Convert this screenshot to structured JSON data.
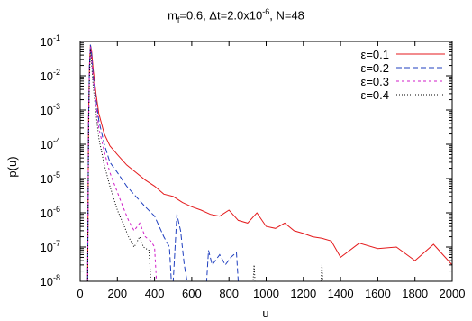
{
  "chart_data": {
    "type": "line",
    "title_parts": {
      "p1": "m",
      "p1_sub": "f",
      "p2": "=0.6, Δt=2.0x10",
      "p2_sup": "-6",
      "p3": ", N=48"
    },
    "xlabel": "u",
    "ylabel": "p(u)",
    "xlim": [
      0,
      2000
    ],
    "ylim": [
      1e-08,
      0.1
    ],
    "yscale": "log",
    "x_ticks": [
      "0",
      "200",
      "400",
      "600",
      "800",
      "1000",
      "1200",
      "1400",
      "1600",
      "1800",
      "2000"
    ],
    "y_tick_bases": [
      "10",
      "10",
      "10",
      "10",
      "10",
      "10",
      "10",
      "10"
    ],
    "y_tick_exps": [
      "-8",
      "-7",
      "-6",
      "-5",
      "-4",
      "-3",
      "-2",
      "-1"
    ],
    "legend_position": "top-right",
    "series": [
      {
        "name": "ε=0.1",
        "color": "#e41a1c",
        "dash": "solid",
        "points": [
          [
            40,
            1e-08
          ],
          [
            45,
            0.0005
          ],
          [
            50,
            0.02
          ],
          [
            55,
            0.08
          ],
          [
            62,
            0.05
          ],
          [
            70,
            0.015
          ],
          [
            85,
            0.003
          ],
          [
            100,
            0.0008
          ],
          [
            130,
            0.0002
          ],
          [
            160,
            9e-05
          ],
          [
            200,
            5e-05
          ],
          [
            250,
            2.5e-05
          ],
          [
            300,
            1.5e-05
          ],
          [
            350,
            9e-06
          ],
          [
            400,
            6e-06
          ],
          [
            450,
            3.5e-06
          ],
          [
            500,
            3e-06
          ],
          [
            550,
            2e-06
          ],
          [
            600,
            1.5e-06
          ],
          [
            650,
            1.2e-06
          ],
          [
            700,
            9e-07
          ],
          [
            750,
            8e-07
          ],
          [
            800,
            1.2e-06
          ],
          [
            850,
            6e-07
          ],
          [
            900,
            5e-07
          ],
          [
            950,
            1e-06
          ],
          [
            1000,
            4e-07
          ],
          [
            1050,
            3.5e-07
          ],
          [
            1100,
            5e-07
          ],
          [
            1150,
            3e-07
          ],
          [
            1200,
            2.5e-07
          ],
          [
            1250,
            2e-07
          ],
          [
            1300,
            1.8e-07
          ],
          [
            1350,
            1.5e-07
          ],
          [
            1400,
            5e-08
          ],
          [
            1500,
            1.3e-07
          ],
          [
            1600,
            9e-08
          ],
          [
            1700,
            1e-07
          ],
          [
            1800,
            4e-08
          ],
          [
            1900,
            1.2e-07
          ],
          [
            2000,
            3e-08
          ]
        ]
      },
      {
        "name": "ε=0.2",
        "color": "#1f3fbf",
        "dash": "6,3",
        "points": [
          [
            40,
            1e-08
          ],
          [
            45,
            0.0004
          ],
          [
            50,
            0.02
          ],
          [
            55,
            0.08
          ],
          [
            62,
            0.04
          ],
          [
            70,
            0.01
          ],
          [
            85,
            0.002
          ],
          [
            100,
            0.0005
          ],
          [
            130,
            0.0001
          ],
          [
            160,
            3e-05
          ],
          [
            200,
            1.5e-05
          ],
          [
            250,
            6e-06
          ],
          [
            300,
            3e-06
          ],
          [
            350,
            1.5e-06
          ],
          [
            400,
            8e-07
          ],
          [
            450,
            2e-07
          ],
          [
            480,
            1e-07
          ],
          [
            490,
            1e-08
          ],
          [
            500,
            1e-08
          ],
          [
            520,
            9e-07
          ],
          [
            540,
            3e-07
          ],
          [
            560,
            3e-08
          ],
          [
            575,
            1e-08
          ],
          [
            680,
            1e-08
          ],
          [
            690,
            8e-08
          ],
          [
            710,
            3e-08
          ],
          [
            750,
            6e-08
          ],
          [
            780,
            3e-08
          ],
          [
            810,
            5e-08
          ],
          [
            840,
            7e-08
          ],
          [
            850,
            1e-08
          ]
        ]
      },
      {
        "name": "ε=0.3",
        "color": "#d01ec8",
        "dash": "3,3",
        "points": [
          [
            40,
            1e-08
          ],
          [
            45,
            0.0003
          ],
          [
            50,
            0.015
          ],
          [
            55,
            0.07
          ],
          [
            62,
            0.03
          ],
          [
            70,
            0.008
          ],
          [
            85,
            0.0015
          ],
          [
            100,
            0.0003
          ],
          [
            130,
            6e-05
          ],
          [
            160,
            1.5e-05
          ],
          [
            200,
            4e-06
          ],
          [
            230,
            1.5e-06
          ],
          [
            260,
            6e-07
          ],
          [
            290,
            3e-07
          ],
          [
            320,
            5e-07
          ],
          [
            350,
            2e-07
          ],
          [
            380,
            1.5e-07
          ],
          [
            400,
            1e-07
          ],
          [
            410,
            1e-08
          ]
        ]
      },
      {
        "name": "ε=0.4",
        "color": "#000000",
        "dash": "1,2",
        "points": [
          [
            40,
            1e-08
          ],
          [
            45,
            0.0002
          ],
          [
            50,
            0.01
          ],
          [
            55,
            0.06
          ],
          [
            62,
            0.02
          ],
          [
            70,
            0.005
          ],
          [
            85,
            0.0008
          ],
          [
            100,
            0.00015
          ],
          [
            130,
            2.5e-05
          ],
          [
            160,
            6e-06
          ],
          [
            200,
            1.2e-06
          ],
          [
            230,
            5e-07
          ],
          [
            260,
            2e-07
          ],
          [
            290,
            1e-07
          ],
          [
            320,
            2e-07
          ],
          [
            340,
            1e-07
          ],
          [
            370,
            8e-08
          ],
          [
            380,
            1e-08
          ],
          [
            930,
            1e-08
          ],
          [
            935,
            3e-08
          ],
          [
            940,
            1e-08
          ],
          [
            1295,
            1e-08
          ],
          [
            1300,
            3e-08
          ],
          [
            1305,
            1e-08
          ]
        ]
      }
    ]
  }
}
